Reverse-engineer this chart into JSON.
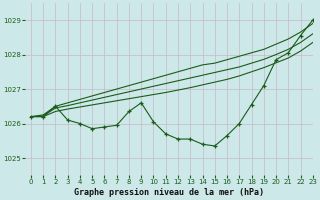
{
  "title": "Graphe pression niveau de la mer (hPa)",
  "bg_color": "#cce8e8",
  "grid_color": "#c8b8c8",
  "line_color": "#1a5c1a",
  "xlim": [
    -0.5,
    23
  ],
  "ylim": [
    1024.5,
    1029.5
  ],
  "yticks": [
    1025,
    1026,
    1027,
    1028,
    1029
  ],
  "xticks": [
    0,
    1,
    2,
    3,
    4,
    5,
    6,
    7,
    8,
    9,
    10,
    11,
    12,
    13,
    14,
    15,
    16,
    17,
    18,
    19,
    20,
    21,
    22,
    23
  ],
  "series_main": [
    1026.2,
    1026.2,
    1026.5,
    1026.1,
    1026.0,
    1025.85,
    1025.9,
    1025.95,
    1026.35,
    1026.6,
    1026.05,
    1025.7,
    1025.55,
    1025.55,
    1025.4,
    1025.35,
    1025.65,
    1026.0,
    1026.55,
    1027.1,
    1027.85,
    1028.05,
    1028.55,
    1029.0
  ],
  "series_line1": [
    1026.2,
    1026.25,
    1026.5,
    1026.6,
    1026.7,
    1026.8,
    1026.9,
    1027.0,
    1027.1,
    1027.2,
    1027.3,
    1027.4,
    1027.5,
    1027.6,
    1027.7,
    1027.75,
    1027.85,
    1027.95,
    1028.05,
    1028.15,
    1028.3,
    1028.45,
    1028.65,
    1028.9
  ],
  "series_line2": [
    1026.2,
    1026.22,
    1026.45,
    1026.52,
    1026.6,
    1026.68,
    1026.76,
    1026.84,
    1026.92,
    1027.0,
    1027.08,
    1027.16,
    1027.24,
    1027.32,
    1027.4,
    1027.48,
    1027.56,
    1027.64,
    1027.75,
    1027.86,
    1028.0,
    1028.15,
    1028.35,
    1028.6
  ],
  "series_line3": [
    1026.2,
    1026.2,
    1026.35,
    1026.42,
    1026.48,
    1026.54,
    1026.6,
    1026.66,
    1026.72,
    1026.78,
    1026.84,
    1026.9,
    1026.97,
    1027.04,
    1027.12,
    1027.2,
    1027.28,
    1027.38,
    1027.5,
    1027.62,
    1027.76,
    1027.9,
    1028.1,
    1028.35
  ],
  "title_fontsize": 6,
  "tick_fontsize": 5
}
